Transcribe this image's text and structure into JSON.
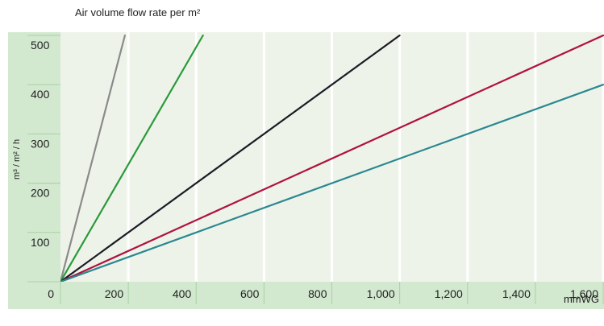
{
  "chart_data": {
    "type": "line",
    "title": "Air volume flow rate per m²",
    "xlabel": "mmWG",
    "ylabel": "m³ / m² / h",
    "x_ticks": [
      0,
      200,
      400,
      600,
      800,
      1000,
      1200,
      1400,
      1600
    ],
    "x_tick_labels": [
      "0",
      "200",
      "400",
      "600",
      "800",
      "1,000",
      "1,200",
      "1,400",
      "1,600"
    ],
    "y_ticks": [
      100,
      200,
      300,
      400,
      500
    ],
    "y_tick_labels": [
      "100",
      "200",
      "300",
      "400",
      "500"
    ],
    "xlim": [
      0,
      1600
    ],
    "ylim": [
      0,
      500
    ],
    "grid": true,
    "series": [
      {
        "color": "#8a8a8a",
        "x": [
          0,
          190
        ],
        "y": [
          0,
          500
        ]
      },
      {
        "color": "#2a9a3a",
        "x": [
          0,
          420
        ],
        "y": [
          0,
          500
        ]
      },
      {
        "color": "#1b1b26",
        "x": [
          0,
          1000
        ],
        "y": [
          0,
          500
        ]
      },
      {
        "color": "#b0123f",
        "x": [
          0,
          1600
        ],
        "y": [
          0,
          500
        ]
      },
      {
        "color": "#2a8890",
        "x": [
          0,
          1600
        ],
        "y": [
          0,
          400
        ]
      }
    ],
    "colors": {
      "panel": "#d2e8cf",
      "plot_bg": "#eef3ea",
      "grid": "#ffffff",
      "tick_mark": "#a9d2a5"
    }
  }
}
